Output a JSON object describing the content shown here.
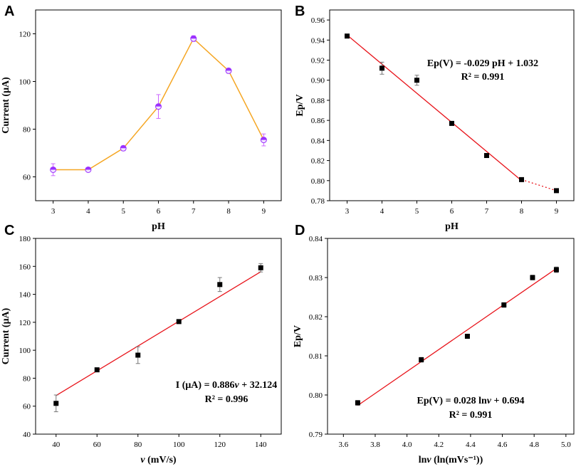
{
  "chart_data": [
    {
      "panel": "A",
      "type": "line",
      "xlabel": "pH",
      "ylabel": "Current (μA)",
      "xlim": [
        2.5,
        9.5
      ],
      "ylim": [
        50,
        130
      ],
      "xticks": [
        3,
        4,
        5,
        6,
        7,
        8,
        9
      ],
      "yticks": [
        60,
        80,
        100,
        120
      ],
      "line_color": "#f5a623",
      "marker_color": "#9b30ff",
      "errorbar_color": "#cc66ff",
      "series": [
        {
          "name": "Current",
          "x": [
            3,
            4,
            5,
            6,
            7,
            8,
            9
          ],
          "y": [
            63,
            63,
            72,
            89.5,
            118,
            104.5,
            75.5
          ],
          "err": [
            2.5,
            0.5,
            1.0,
            5.0,
            1.2,
            1.0,
            2.5
          ]
        }
      ]
    },
    {
      "panel": "B",
      "type": "scatter",
      "xlabel": "pH",
      "ylabel": "Ep/V",
      "xlim": [
        2.5,
        9.5
      ],
      "ylim": [
        0.78,
        0.97
      ],
      "xticks": [
        3,
        4,
        5,
        6,
        7,
        8,
        9
      ],
      "yticks": [
        0.78,
        0.8,
        0.82,
        0.84,
        0.86,
        0.88,
        0.9,
        0.92,
        0.94,
        0.96
      ],
      "series": [
        {
          "name": "Ep",
          "x": [
            3,
            4,
            5,
            6,
            7,
            8,
            9
          ],
          "y": [
            0.944,
            0.912,
            0.9,
            0.857,
            0.825,
            0.801,
            0.79
          ],
          "err": [
            0.001,
            0.006,
            0.005,
            0.001,
            0.001,
            0.001,
            0.001
          ]
        }
      ],
      "fit": {
        "slope": -0.029,
        "intercept": 1.032,
        "x_solid": [
          3,
          8
        ],
        "x_dotted": [
          8,
          9
        ]
      },
      "equation": "Ep(V) = -0.029 pH + 1.032",
      "r2": "R² = 0.991"
    },
    {
      "panel": "C",
      "type": "scatter",
      "xlabel": "v (mV/s)",
      "ylabel": "Current (μA)",
      "xlim": [
        30,
        150
      ],
      "ylim": [
        40,
        180
      ],
      "xticks": [
        40,
        60,
        80,
        100,
        120,
        140
      ],
      "yticks": [
        40,
        60,
        80,
        100,
        120,
        140,
        160,
        180
      ],
      "series": [
        {
          "name": "Current",
          "x": [
            40,
            60,
            80,
            100,
            120,
            140
          ],
          "y": [
            62,
            86,
            96.5,
            120.5,
            147,
            159
          ],
          "err": [
            6,
            1,
            6,
            1,
            5,
            3
          ]
        }
      ],
      "fit": {
        "slope": 0.886,
        "intercept": 32.124,
        "x_range": [
          40,
          140
        ]
      },
      "equation": "I (μA) = 0.886v + 32.124",
      "r2": "R² = 0.996"
    },
    {
      "panel": "D",
      "type": "scatter",
      "xlabel": "lnv (ln(mVs⁻¹))",
      "ylabel": "Ep/V",
      "xlim": [
        3.5,
        5.05
      ],
      "ylim": [
        0.79,
        0.84
      ],
      "xticks": [
        3.6,
        3.8,
        4.0,
        4.2,
        4.4,
        4.6,
        4.8,
        5.0
      ],
      "yticks": [
        0.79,
        0.8,
        0.81,
        0.82,
        0.83,
        0.84
      ],
      "series": [
        {
          "name": "Ep",
          "x": [
            3.69,
            4.09,
            4.38,
            4.61,
            4.79,
            4.94
          ],
          "y": [
            0.798,
            0.809,
            0.815,
            0.823,
            0.83,
            0.832
          ],
          "err": [
            0.0006,
            0.0006,
            0.0004,
            0.0006,
            0.0006,
            0.0007
          ]
        }
      ],
      "fit": {
        "slope": 0.028,
        "intercept": 0.694,
        "x_range": [
          3.69,
          4.94
        ]
      },
      "equation": "Ep(V) = 0.028 lnv + 0.694",
      "r2": "R² = 0.991"
    }
  ]
}
